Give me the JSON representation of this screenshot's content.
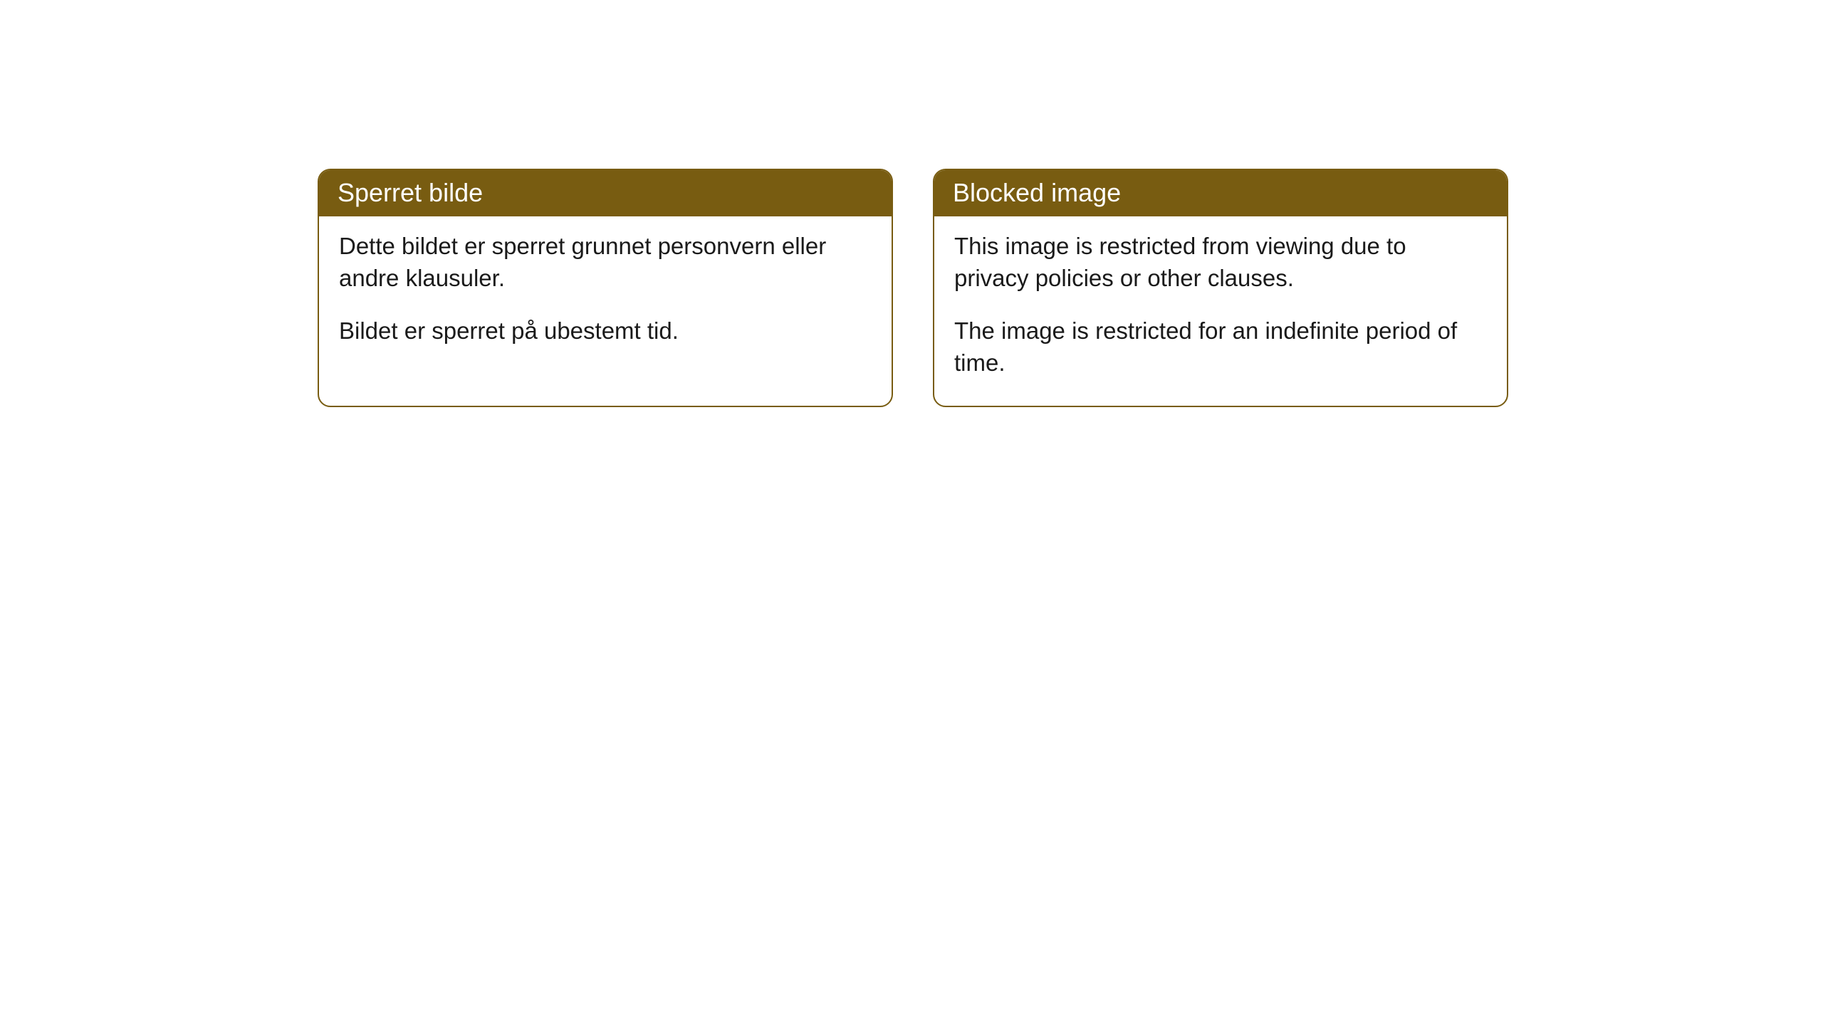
{
  "cards": [
    {
      "title": "Sperret bilde",
      "paragraph1": "Dette bildet er sperret grunnet personvern eller andre klausuler.",
      "paragraph2": "Bildet er sperret på ubestemt tid."
    },
    {
      "title": "Blocked image",
      "paragraph1": "This image is restricted from viewing due to privacy policies or other clauses.",
      "paragraph2": "The image is restricted for an indefinite period of time."
    }
  ],
  "styling": {
    "header_bg_color": "#785c11",
    "header_text_color": "#ffffff",
    "border_color": "#785c11",
    "body_bg_color": "#ffffff",
    "body_text_color": "#1a1a1a",
    "border_radius": 18,
    "header_font_size": 36,
    "body_font_size": 33
  }
}
